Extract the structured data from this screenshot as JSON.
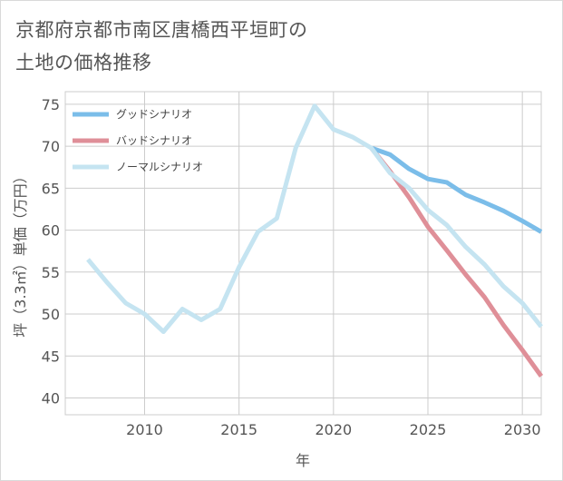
{
  "title_line1": "京都府京都市南区唐橋西平垣町の",
  "title_line2": "土地の価格推移",
  "chart_data": {
    "type": "line",
    "xlabel": "年",
    "ylabel": "坪（3.3㎡）単価（万円）",
    "xlim": [
      2005.8,
      2031
    ],
    "ylim": [
      38,
      76.5
    ],
    "xticks": [
      2010,
      2015,
      2020,
      2025,
      2030
    ],
    "yticks": [
      40,
      45,
      50,
      55,
      60,
      65,
      70,
      75
    ],
    "grid": true,
    "legend_position": "top-left",
    "series": [
      {
        "name": "グッドシナリオ",
        "color": "#7bbde9",
        "x": [
          2022,
          2023,
          2024,
          2025,
          2026,
          2027,
          2028,
          2029,
          2030,
          2031
        ],
        "y": [
          69.8,
          69.0,
          67.3,
          66.1,
          65.7,
          64.2,
          63.3,
          62.3,
          61.1,
          59.8
        ]
      },
      {
        "name": "バッドシナリオ",
        "color": "#df8f98",
        "x": [
          2022,
          2023,
          2024,
          2025,
          2026,
          2027,
          2028,
          2029,
          2030,
          2031
        ],
        "y": [
          69.8,
          67.0,
          63.9,
          60.4,
          57.6,
          54.7,
          52.0,
          48.7,
          45.7,
          42.6
        ]
      },
      {
        "name": "ノーマルシナリオ",
        "color": "#c5e4f1",
        "x": [
          2007,
          2008,
          2009,
          2010,
          2011,
          2012,
          2013,
          2014,
          2015,
          2016,
          2017,
          2018,
          2019,
          2020,
          2021,
          2022,
          2023,
          2024,
          2025,
          2026,
          2027,
          2028,
          2029,
          2030,
          2031
        ],
        "y": [
          56.5,
          53.8,
          51.3,
          50.0,
          47.9,
          50.6,
          49.3,
          50.6,
          55.6,
          59.8,
          61.4,
          69.8,
          74.8,
          72.0,
          71.1,
          69.8,
          66.8,
          65.0,
          62.4,
          60.6,
          58.0,
          55.9,
          53.3,
          51.3,
          48.5
        ]
      }
    ]
  }
}
